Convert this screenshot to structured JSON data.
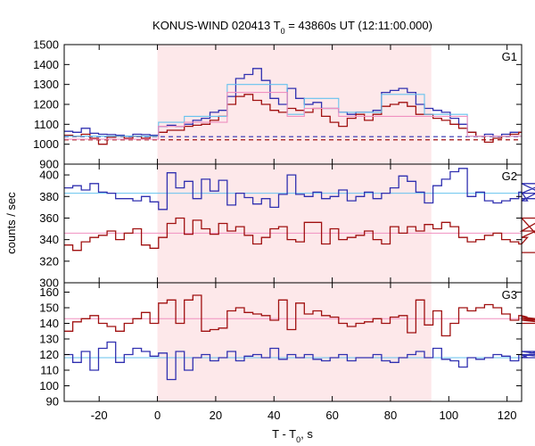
{
  "chart_data": {
    "type": "line",
    "title_main": "KONUS-WIND 020413 T",
    "title_sub": "0",
    "title_rest": " = 43860s UT (12:11:00.000)",
    "xlabel_main": "T - T",
    "xlabel_sub": "0",
    "xlabel_rest": ", s",
    "ylabel": "counts / sec",
    "xlim": [
      -32,
      125
    ],
    "x_ticks": [
      -20,
      0,
      20,
      40,
      60,
      80,
      100,
      120
    ],
    "shaded_interval": [
      0,
      94
    ],
    "colors": {
      "shade": "#fde8ea",
      "blue": "#3030b0",
      "red": "#a01010",
      "cyan": "#66c2ee",
      "pink": "#f090c0"
    },
    "panels": [
      {
        "name": "G1",
        "ylim": [
          900,
          1500
        ],
        "y_ticks": [
          900,
          1000,
          1100,
          1200,
          1300,
          1400,
          1500
        ],
        "background_levels": [
          1038,
          1022
        ],
        "background_levels_color": [
          "blue",
          "red"
        ],
        "bin_width": 2.944,
        "x_start": -32,
        "series": [
          {
            "color": "blue",
            "values": [
              1065,
              1060,
              1080,
              1055,
              1050,
              1048,
              1045,
              1040,
              1050,
              1048,
              1045,
              1090,
              1095,
              1090,
              1100,
              1120,
              1130,
              1160,
              1170,
              1240,
              1330,
              1350,
              1380,
              1320,
              1230,
              1200,
              1280,
              1230,
              1200,
              1210,
              1180,
              1180,
              1160,
              1150,
              1160,
              1160,
              1170,
              1260,
              1270,
              1280,
              1260,
              1200,
              1180,
              1170,
              1160,
              1130,
              1100,
              1060,
              1040,
              1050,
              1040,
              1050,
              1060,
              1060
            ]
          },
          {
            "color": "red",
            "values": [
              1045,
              1040,
              1050,
              1030,
              1000,
              1035,
              1040,
              1030,
              1040,
              1030,
              1040,
              1060,
              1070,
              1070,
              1090,
              1095,
              1100,
              1120,
              1140,
              1200,
              1240,
              1250,
              1220,
              1200,
              1170,
              1160,
              1180,
              1170,
              1160,
              1180,
              1140,
              1110,
              1090,
              1130,
              1150,
              1120,
              1150,
              1190,
              1200,
              1210,
              1190,
              1150,
              1150,
              1130,
              1120,
              1100,
              1080,
              1060,
              1040,
              1010,
              1030,
              1040,
              1050,
              1060
            ]
          },
          {
            "color": "cyan",
            "values": [
              1040,
              1040,
              1040,
              1040,
              1040,
              1040,
              1040,
              1040,
              1040,
              1040,
              1040,
              1110,
              1110,
              1110,
              1140,
              1140,
              1140,
              1140,
              1140,
              1300,
              1300,
              1300,
              1300,
              1300,
              1300,
              1300,
              1150,
              1150,
              1230,
              1230,
              1230,
              1230,
              1160,
              1160,
              1160,
              1160,
              1160,
              1250,
              1250,
              1250,
              1250,
              1250,
              1150,
              1150,
              1150,
              1150,
              1150,
              1040,
              1040,
              1040,
              1040,
              1040,
              1040,
              1040
            ]
          },
          {
            "color": "pink",
            "values": [
              1025,
              1025,
              1025,
              1025,
              1025,
              1025,
              1025,
              1025,
              1025,
              1025,
              1025,
              1090,
              1090,
              1090,
              1110,
              1110,
              1110,
              1110,
              1110,
              1260,
              1260,
              1260,
              1260,
              1260,
              1260,
              1260,
              1140,
              1140,
              1180,
              1180,
              1180,
              1180,
              1140,
              1140,
              1140,
              1140,
              1140,
              1140,
              1140,
              1140,
              1140,
              1140,
              1140,
              1140,
              1140,
              1140,
              1140,
              1040,
              1040,
              1040,
              1040,
              1040,
              1040,
              1040
            ]
          }
        ]
      },
      {
        "name": "G2",
        "ylim": [
          300,
          410
        ],
        "y_ticks": [
          300,
          320,
          340,
          360,
          380,
          400
        ],
        "background_levels": [
          383,
          346
        ],
        "background_levels_color": [
          "cyan",
          "pink"
        ],
        "bin_width": 2.944,
        "x_start": -32,
        "series": [
          {
            "color": "blue",
            "values": [
              388,
              390,
              386,
              392,
              384,
              383,
              378,
              378,
              376,
              380,
              375,
              368,
              402,
              388,
              394,
              378,
              396,
              385,
              395,
              372,
              383,
              379,
              373,
              378,
              370,
              382,
              400,
              382,
              380,
              384,
              378,
              380,
              386,
              376,
              380,
              384,
              378,
              383,
              388,
              399,
              394,
              384,
              374,
              390,
              396,
              403,
              406,
              380,
              384,
              376,
              374,
              376,
              378,
              384,
              376,
              383,
              392,
              378
            ]
          },
          {
            "color": "red",
            "values": [
              335,
              330,
              338,
              342,
              344,
              348,
              340,
              346,
              350,
              335,
              332,
              342,
              355,
              360,
              345,
              358,
              350,
              345,
              355,
              348,
              352,
              344,
              336,
              342,
              350,
              352,
              340,
              338,
              356,
              356,
              336,
              350,
              340,
              342,
              344,
              348,
              340,
              336,
              352,
              346,
              352,
              348,
              354,
              350,
              356,
              352,
              342,
              338,
              340,
              344,
              346,
              340,
              338,
              336,
              342,
              348,
              360,
              328
            ]
          }
        ]
      },
      {
        "name": "G3",
        "ylim": [
          90,
          166
        ],
        "y_ticks": [
          90,
          100,
          110,
          120,
          130,
          140,
          150,
          160
        ],
        "background_levels": [
          143,
          118
        ],
        "background_levels_color": [
          "pink",
          "cyan"
        ],
        "bin_width": 2.944,
        "x_start": -32,
        "series": [
          {
            "color": "red",
            "values": [
              135,
              141,
              143,
              145,
              140,
              138,
              135,
              140,
              143,
              147,
              140,
              153,
              155,
              140,
              155,
              158,
              135,
              136,
              137,
              148,
              150,
              147,
              146,
              145,
              142,
              155,
              136,
              153,
              146,
              148,
              145,
              144,
              140,
              138,
              140,
              141,
              143,
              140,
              144,
              145,
              134,
              155,
              139,
              148,
              132,
              140,
              150,
              148,
              150,
              152,
              150,
              146,
              142,
              145,
              144,
              143,
              142,
              140
            ]
          },
          {
            "color": "blue",
            "values": [
              120,
              115,
              122,
              110,
              124,
              128,
              115,
              120,
              124,
              122,
              119,
              121,
              104,
              122,
              110,
              118,
              120,
              116,
              118,
              122,
              116,
              119,
              120,
              118,
              124,
              117,
              120,
              118,
              120,
              117,
              116,
              118,
              120,
              116,
              118,
              118,
              120,
              116,
              115,
              118,
              120,
              122,
              118,
              124,
              117,
              116,
              112,
              118,
              117,
              118,
              120,
              119,
              116,
              120,
              118,
              122,
              120,
              118
            ]
          }
        ]
      }
    ]
  }
}
